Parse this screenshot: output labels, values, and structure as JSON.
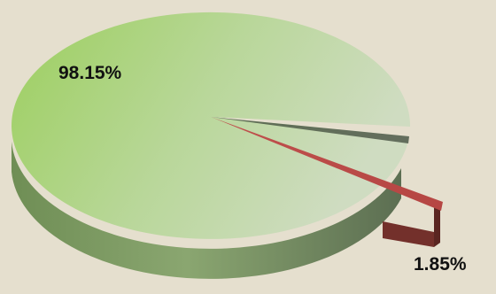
{
  "chart_data": {
    "type": "pie",
    "style": "3d",
    "categories": [
      "",
      ""
    ],
    "values": [
      98.15,
      1.85
    ],
    "labels": [
      "98.15%",
      "1.85%"
    ],
    "colors": [
      "#a8cf78",
      "#c0504d"
    ],
    "exploded_slice": 1,
    "title": "",
    "legend": "none"
  }
}
